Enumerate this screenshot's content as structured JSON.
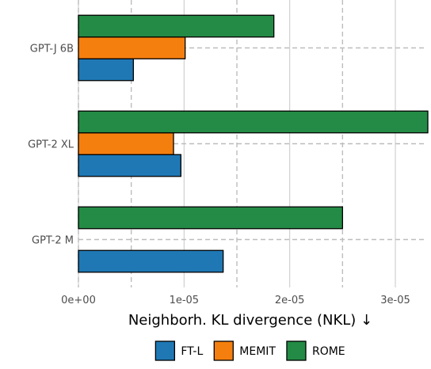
{
  "chart_data": {
    "type": "bar",
    "orientation": "horizontal",
    "categories": [
      "GPT-J 6B",
      "GPT-2 XL",
      "GPT-2 M"
    ],
    "series": [
      {
        "name": "FT-L",
        "color": "#1f78b4",
        "values": [
          5.2e-06,
          9.7e-06,
          1.37e-05
        ]
      },
      {
        "name": "MEMIT",
        "color": "#f57f0e",
        "values": [
          1.01e-05,
          9e-06,
          null
        ]
      },
      {
        "name": "ROME",
        "color": "#238b45",
        "values": [
          1.85e-05,
          3.31e-05,
          2.5e-05
        ]
      }
    ],
    "xlabel": "Neighborh. KL divergence (NKL) ↓",
    "ylabel": "",
    "xlim": [
      0,
      3.3e-05
    ],
    "xticks": [
      0,
      1e-05,
      2e-05,
      3e-05
    ],
    "xtick_labels": [
      "0e+00",
      "1e-05",
      "2e-05",
      "3e-05"
    ],
    "grid": true,
    "legend_position": "bottom"
  }
}
